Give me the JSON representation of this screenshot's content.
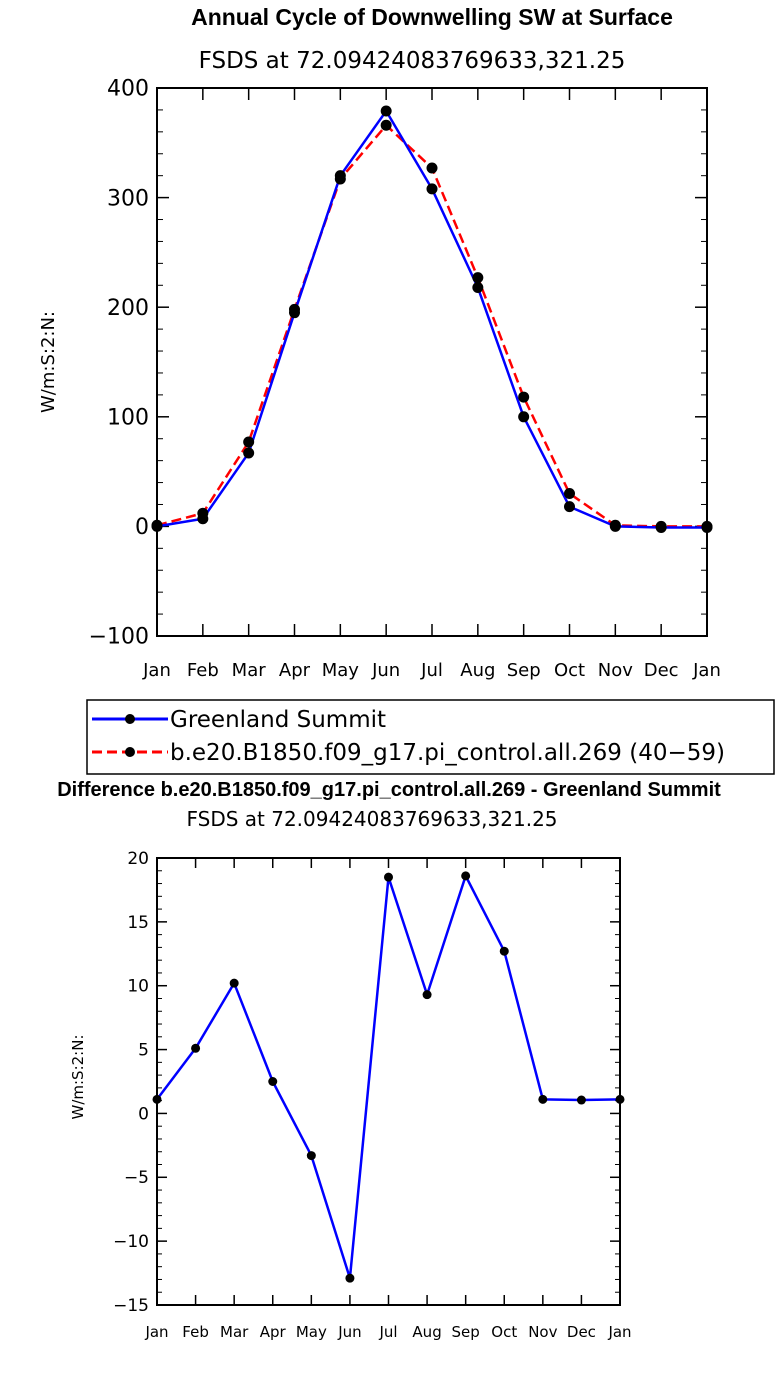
{
  "chart_data": [
    {
      "type": "line",
      "title": "Annual Cycle of Downwelling SW at Surface",
      "subtitle": "FSDS at 72.09424083769633,321.25",
      "xlabel": "",
      "ylabel": "W/m:S:2:N:",
      "categories": [
        "Jan",
        "Feb",
        "Mar",
        "Apr",
        "May",
        "Jun",
        "Jul",
        "Aug",
        "Sep",
        "Oct",
        "Nov",
        "Dec",
        "Jan"
      ],
      "ylim": [
        -100,
        400
      ],
      "yticks": [
        "-100",
        "0",
        "100",
        "200",
        "300",
        "400"
      ],
      "series": [
        {
          "name": "Greenland Summit",
          "color": "#0000ff",
          "dash": "solid",
          "values": [
            0,
            7,
            67,
            195,
            320,
            379,
            308,
            218,
            100,
            18,
            0,
            -1,
            -1
          ]
        },
        {
          "name": "b.e20.B1850.f09_g17.pi_control.all.269 (40−59)",
          "color": "#ff0000",
          "dash": "dashed",
          "values": [
            1,
            12,
            77,
            198,
            317,
            366,
            327,
            227,
            118,
            30,
            1,
            0,
            0
          ]
        }
      ],
      "legend_position": "bottom"
    },
    {
      "type": "line",
      "title": "Difference b.e20.B1850.f09_g17.pi_control.all.269 - Greenland Summit",
      "subtitle": "FSDS at 72.09424083769633,321.25",
      "xlabel": "",
      "ylabel": "W/m:S:2:N:",
      "categories": [
        "Jan",
        "Feb",
        "Mar",
        "Apr",
        "May",
        "Jun",
        "Jul",
        "Aug",
        "Sep",
        "Oct",
        "Nov",
        "Dec",
        "Jan"
      ],
      "ylim": [
        -15,
        20
      ],
      "yticks": [
        "-15",
        "-10",
        "-5",
        "0",
        "5",
        "10",
        "15",
        "20"
      ],
      "series": [
        {
          "color": "#0000ff",
          "dash": "solid",
          "values": [
            1.1,
            5.1,
            10.2,
            2.5,
            -3.3,
            -12.9,
            18.5,
            9.3,
            18.6,
            12.7,
            1.1,
            1.05,
            1.1
          ]
        }
      ]
    }
  ]
}
